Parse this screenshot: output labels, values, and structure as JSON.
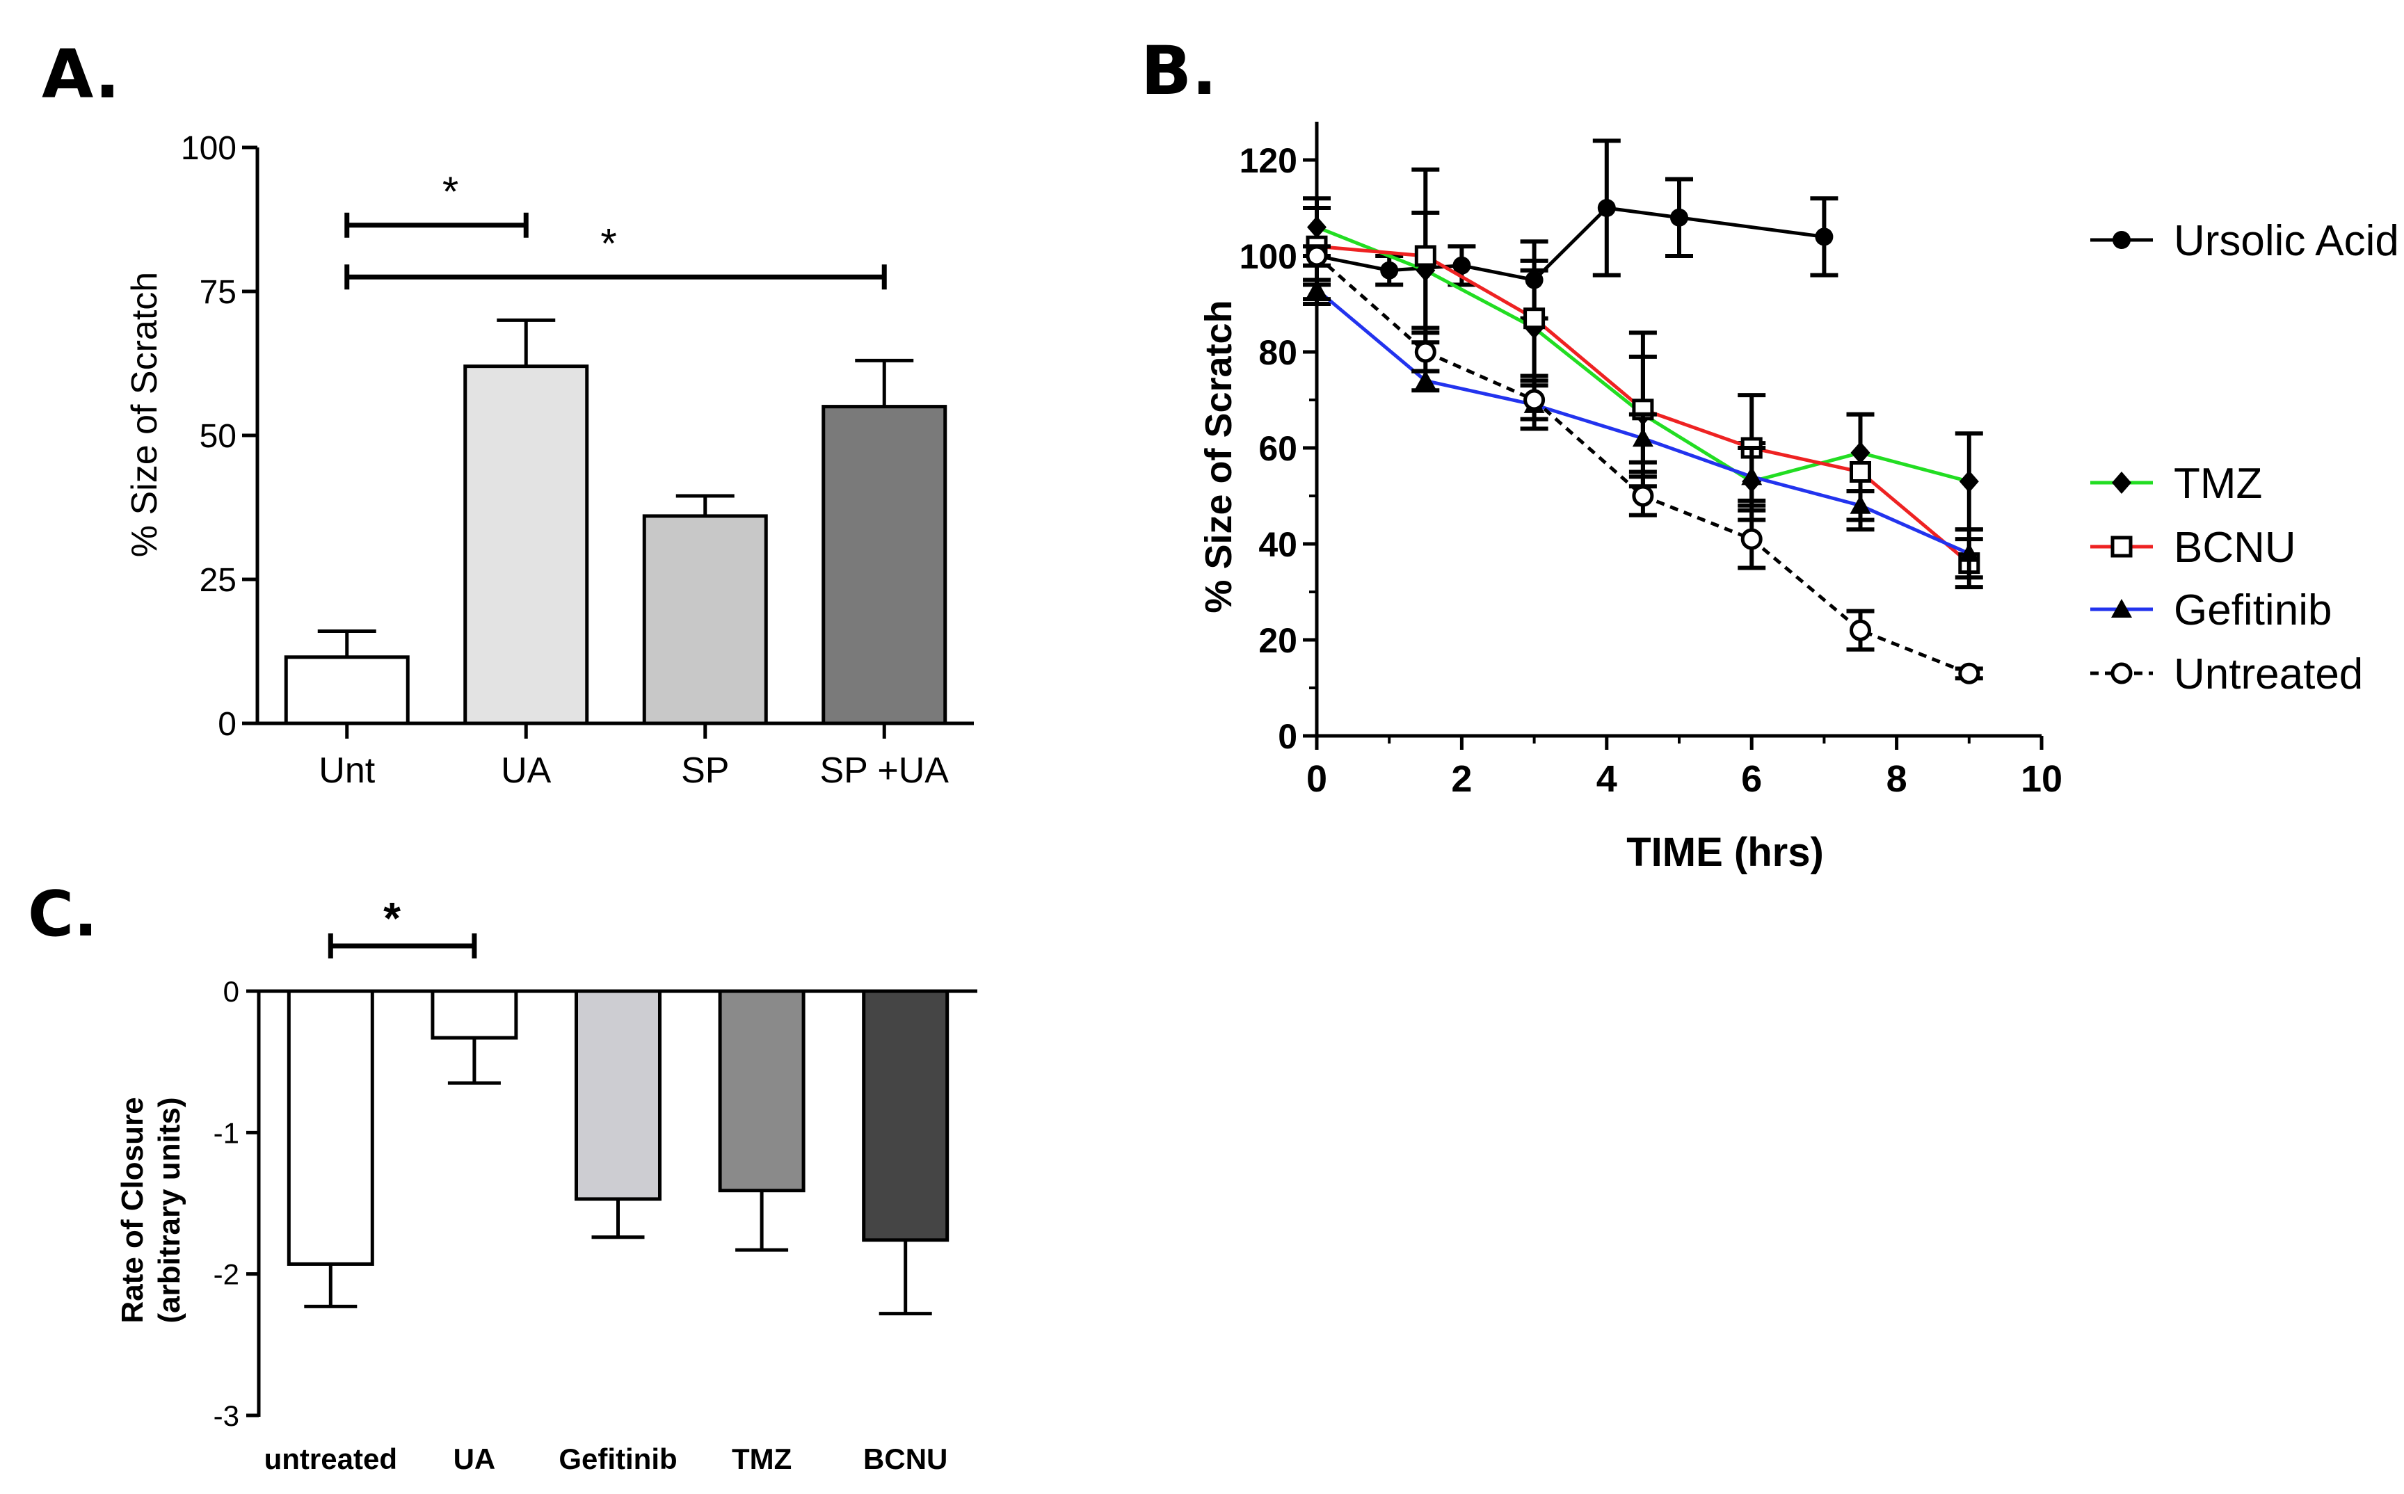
{
  "chart_data": [
    {
      "panel": "A.",
      "type": "bar",
      "ylabel": "% Size of Scratch",
      "ylim": [
        0,
        100
      ],
      "yticks": [
        0,
        25,
        50,
        75,
        100
      ],
      "categories": [
        "Unt",
        "UA",
        "SP",
        "SP +UA"
      ],
      "values": [
        11.5,
        62,
        36,
        55
      ],
      "errors": [
        4.5,
        8,
        3.5,
        8
      ],
      "colors": [
        "#ffffff",
        "#e3e3e3",
        "#c8c8c8",
        "#7a7a7a"
      ],
      "significance": [
        {
          "from": 0,
          "to": 1,
          "label": "*"
        },
        {
          "from": 0,
          "to": 3,
          "label": "*"
        }
      ]
    },
    {
      "panel": "B.",
      "type": "line",
      "xlabel": "TIME (hrs)",
      "ylabel": "% Size of Scratch",
      "xlim": [
        0,
        10
      ],
      "ylim": [
        0,
        120
      ],
      "xticks": [
        0,
        2,
        4,
        6,
        8,
        10
      ],
      "yticks": [
        0,
        20,
        40,
        60,
        80,
        100,
        120
      ],
      "series": [
        {
          "name": "Ursolic Acid",
          "color": "#000000",
          "marker": "circle-filled",
          "dash": false,
          "x": [
            0,
            1,
            2,
            3,
            4,
            5,
            7
          ],
          "y": [
            100,
            97,
            98,
            95,
            110,
            108,
            104
          ],
          "err": [
            10,
            3,
            4,
            8,
            14,
            8,
            8
          ]
        },
        {
          "name": "TMZ",
          "color": "#22dd22",
          "marker": "diamond-filled",
          "dash": false,
          "x": [
            0,
            1.5,
            3,
            4.5,
            6,
            7.5,
            9
          ],
          "y": [
            106,
            97,
            85,
            67,
            53,
            59,
            53
          ],
          "err": [
            6,
            12,
            12,
            12,
            8,
            8,
            10
          ]
        },
        {
          "name": "BCNU",
          "color": "#ee2222",
          "marker": "square-open",
          "dash": false,
          "x": [
            0,
            1.5,
            3,
            4.5,
            6,
            7.5,
            9
          ],
          "y": [
            102,
            100,
            87,
            68,
            60,
            55,
            36
          ],
          "err": [
            8,
            18,
            12,
            16,
            11,
            12,
            5
          ]
        },
        {
          "name": "Gefitinib",
          "color": "#2233ee",
          "marker": "triangle-filled",
          "dash": false,
          "x": [
            0,
            1.5,
            3,
            4.5,
            6,
            7.5,
            9
          ],
          "y": [
            93,
            74,
            69,
            62,
            54,
            48,
            38
          ],
          "err": [
            2,
            2,
            5,
            5,
            6,
            3,
            5
          ]
        },
        {
          "name": "Untreated",
          "color": "#000000",
          "marker": "circle-open",
          "dash": true,
          "x": [
            0,
            1.5,
            3,
            4.5,
            6,
            7.5,
            9
          ],
          "y": [
            100,
            80,
            70,
            50,
            41,
            22,
            13
          ],
          "err": [
            2,
            4,
            4,
            4,
            6,
            4,
            1
          ]
        }
      ]
    },
    {
      "panel": "C.",
      "type": "bar",
      "ylabel": "Rate of  Closure",
      "ylabel2": "(arbitrary units)",
      "ylim": [
        -3,
        0
      ],
      "yticks": [
        0,
        -1,
        -2,
        -3
      ],
      "categories": [
        "untreated",
        "UA",
        "Gefitinib",
        "TMZ",
        "BCNU"
      ],
      "values": [
        -1.93,
        -0.33,
        -1.47,
        -1.41,
        -1.76
      ],
      "errors": [
        0.3,
        0.32,
        0.27,
        0.42,
        0.52
      ],
      "colors": [
        "#ffffff",
        "#ffffff",
        "#cdcdd2",
        "#8a8a8a",
        "#454545"
      ],
      "significance": [
        {
          "from": 0,
          "to": 1,
          "label": "*"
        }
      ]
    }
  ]
}
